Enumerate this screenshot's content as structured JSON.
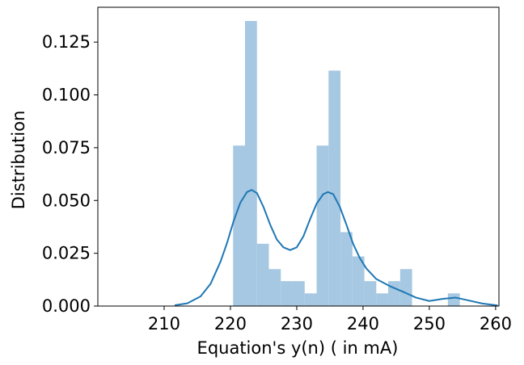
{
  "chart_data": {
    "type": "histogram",
    "xlabel": "Equation's y(n) ( in mA)",
    "ylabel": "Distribution",
    "xlim": [
      200,
      260.5
    ],
    "ylim": [
      0,
      0.1415
    ],
    "x_ticks": [
      210,
      220,
      230,
      240,
      250,
      260
    ],
    "y_ticks": [
      0.0,
      0.025,
      0.05,
      0.075,
      0.1,
      0.125
    ],
    "x_tick_labels": [
      "210",
      "220",
      "230",
      "240",
      "250",
      "260"
    ],
    "y_tick_labels": [
      "0.000",
      "0.025",
      "0.050",
      "0.075",
      "0.100",
      "0.125"
    ],
    "grid": false,
    "bins": [
      {
        "x0": 220.4,
        "x1": 222.2,
        "value": 0.076
      },
      {
        "x0": 222.2,
        "x1": 224.0,
        "value": 0.135
      },
      {
        "x0": 224.0,
        "x1": 225.8,
        "value": 0.0295
      },
      {
        "x0": 225.8,
        "x1": 227.6,
        "value": 0.0175
      },
      {
        "x0": 227.6,
        "x1": 229.4,
        "value": 0.0118
      },
      {
        "x0": 229.4,
        "x1": 231.2,
        "value": 0.0118
      },
      {
        "x0": 231.2,
        "x1": 233.0,
        "value": 0.006
      },
      {
        "x0": 233.0,
        "x1": 234.8,
        "value": 0.076
      },
      {
        "x0": 234.8,
        "x1": 236.6,
        "value": 0.1115
      },
      {
        "x0": 236.6,
        "x1": 238.4,
        "value": 0.035
      },
      {
        "x0": 238.4,
        "x1": 240.2,
        "value": 0.0235
      },
      {
        "x0": 240.2,
        "x1": 242.0,
        "value": 0.0118
      },
      {
        "x0": 242.0,
        "x1": 243.8,
        "value": 0.006
      },
      {
        "x0": 243.8,
        "x1": 245.6,
        "value": 0.0118
      },
      {
        "x0": 245.6,
        "x1": 247.4,
        "value": 0.0175
      },
      {
        "x0": 252.8,
        "x1": 254.6,
        "value": 0.006
      }
    ],
    "kde": {
      "x": [
        211.6,
        213.5,
        215.5,
        217,
        218.5,
        219.5,
        220.5,
        221.5,
        222.5,
        223.2,
        224,
        225,
        226,
        227,
        228,
        229,
        230,
        231,
        232,
        233,
        234,
        234.7,
        235.5,
        236.5,
        237.5,
        238.5,
        239.5,
        240.5,
        242,
        244,
        246,
        248,
        250,
        252,
        254,
        256,
        258,
        260.3
      ],
      "y": [
        0.0004,
        0.0013,
        0.0046,
        0.0105,
        0.021,
        0.03,
        0.0405,
        0.049,
        0.054,
        0.055,
        0.0535,
        0.0468,
        0.0385,
        0.0315,
        0.0278,
        0.0265,
        0.0278,
        0.033,
        0.041,
        0.0485,
        0.053,
        0.054,
        0.053,
        0.047,
        0.0385,
        0.0295,
        0.0228,
        0.0178,
        0.0128,
        0.0095,
        0.0068,
        0.004,
        0.0024,
        0.0034,
        0.004,
        0.0026,
        0.0012,
        0.0003
      ]
    },
    "colors": {
      "bar": "#a6c8e2",
      "kde": "#1f77b4",
      "axis": "#000000"
    }
  }
}
